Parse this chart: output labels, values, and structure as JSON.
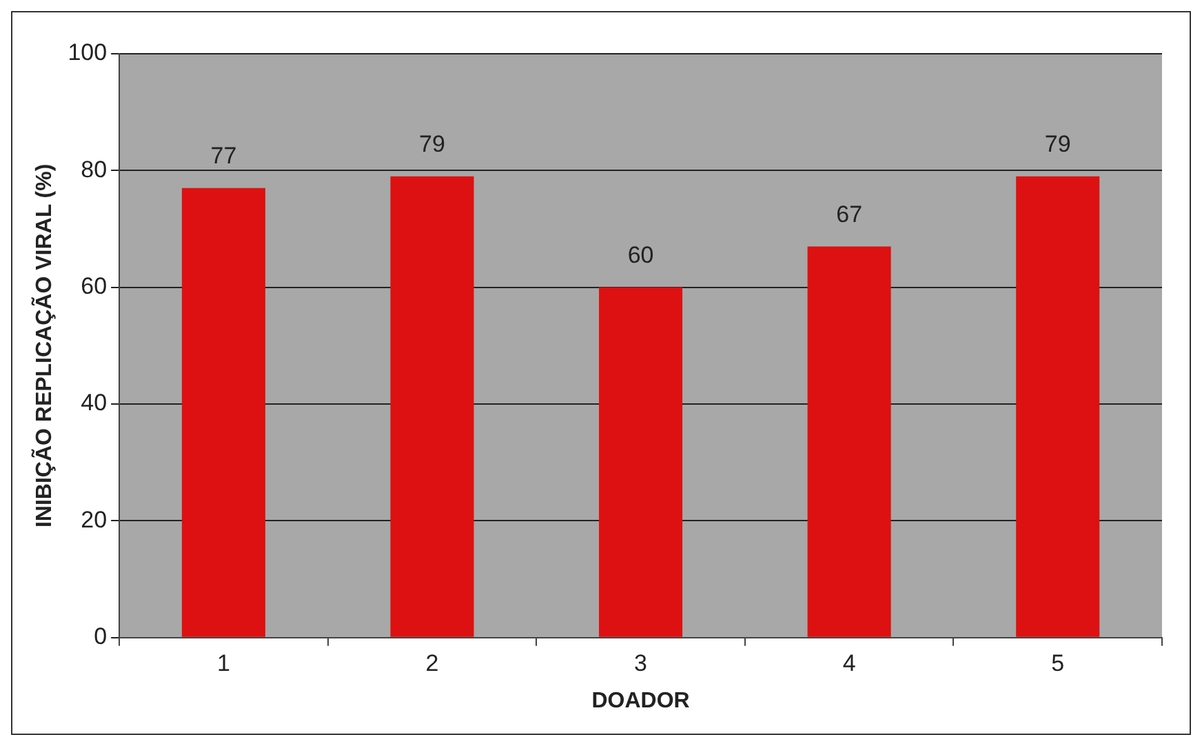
{
  "chart_data": {
    "type": "bar",
    "xlabel": "DOADOR",
    "ylabel": "INIBIÇÃO REPLICAÇÃO VIRAL (%)",
    "categories": [
      "1",
      "2",
      "3",
      "4",
      "5"
    ],
    "values": [
      77,
      79,
      60,
      67,
      79
    ],
    "color": "#dd1111",
    "ylim": [
      0,
      100
    ],
    "yticks": [
      0,
      20,
      40,
      60,
      80,
      100
    ],
    "grid": "y",
    "data_labels": true,
    "legend": false
  }
}
